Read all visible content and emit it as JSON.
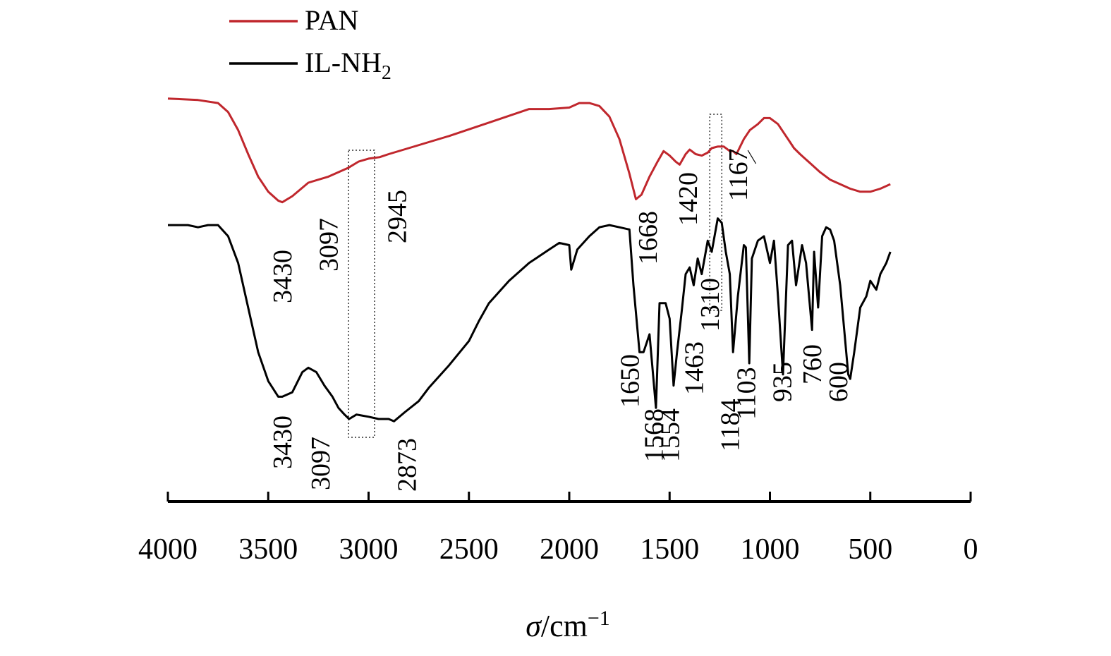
{
  "chart_data": {
    "type": "line",
    "title": "",
    "xlabel": "σ/cm⁻¹",
    "xlabel_parts": {
      "symbol": "σ",
      "unit": "/cm",
      "exp": "−1"
    },
    "ylabel": "",
    "xlim": [
      4000,
      0
    ],
    "x_reversed": true,
    "x_ticks": [
      4000,
      3500,
      3000,
      2500,
      2000,
      1500,
      1000,
      500,
      0
    ],
    "x_tick_labels": [
      "4000",
      "3500",
      "3000",
      "2500",
      "2000",
      "1500",
      "1000",
      "500",
      "0"
    ],
    "y_axis_shown": false,
    "grid": false,
    "legend_position": "top-left",
    "series": [
      {
        "name": "PAN",
        "name_parts": {
          "base": "PAN",
          "sub": ""
        },
        "color": "#c0272d",
        "x": [
          4000,
          3850,
          3750,
          3700,
          3650,
          3600,
          3550,
          3500,
          3450,
          3430,
          3380,
          3300,
          3200,
          3100,
          3050,
          3000,
          2945,
          2900,
          2800,
          2600,
          2400,
          2200,
          2100,
          2000,
          1950,
          1900,
          1850,
          1800,
          1750,
          1700,
          1668,
          1640,
          1600,
          1560,
          1530,
          1500,
          1470,
          1450,
          1420,
          1400,
          1370,
          1340,
          1310,
          1290,
          1260,
          1230,
          1200,
          1184,
          1167,
          1130,
          1100,
          1060,
          1030,
          1000,
          960,
          930,
          900,
          880,
          850,
          800,
          750,
          700,
          650,
          600,
          550,
          500,
          450,
          400
        ],
        "y": [
          0.87,
          0.86,
          0.84,
          0.78,
          0.66,
          0.5,
          0.35,
          0.25,
          0.19,
          0.18,
          0.22,
          0.31,
          0.35,
          0.41,
          0.45,
          0.47,
          0.48,
          0.5,
          0.54,
          0.62,
          0.71,
          0.8,
          0.8,
          0.81,
          0.84,
          0.84,
          0.82,
          0.75,
          0.6,
          0.37,
          0.2,
          0.23,
          0.35,
          0.45,
          0.52,
          0.49,
          0.45,
          0.43,
          0.5,
          0.53,
          0.5,
          0.49,
          0.51,
          0.54,
          0.55,
          0.55,
          0.52,
          0.52,
          0.5,
          0.6,
          0.66,
          0.7,
          0.74,
          0.74,
          0.7,
          0.64,
          0.58,
          0.54,
          0.5,
          0.44,
          0.38,
          0.33,
          0.3,
          0.27,
          0.25,
          0.25,
          0.27,
          0.3
        ]
      },
      {
        "name": "IL-NH2",
        "name_parts": {
          "base": "IL-NH",
          "sub": "2"
        },
        "color": "#000000",
        "x": [
          4000,
          3900,
          3850,
          3800,
          3750,
          3700,
          3650,
          3600,
          3550,
          3500,
          3450,
          3430,
          3380,
          3330,
          3300,
          3260,
          3220,
          3180,
          3150,
          3120,
          3097,
          3060,
          3000,
          2950,
          2900,
          2873,
          2820,
          2750,
          2700,
          2600,
          2500,
          2450,
          2400,
          2300,
          2200,
          2100,
          2050,
          2000,
          1990,
          1960,
          1900,
          1850,
          1800,
          1750,
          1700,
          1680,
          1650,
          1630,
          1600,
          1568,
          1550,
          1520,
          1500,
          1480,
          1463,
          1440,
          1420,
          1400,
          1380,
          1360,
          1340,
          1310,
          1290,
          1260,
          1240,
          1220,
          1200,
          1184,
          1160,
          1130,
          1120,
          1103,
          1090,
          1060,
          1030,
          1000,
          980,
          960,
          935,
          910,
          890,
          870,
          840,
          820,
          790,
          780,
          760,
          740,
          720,
          700,
          680,
          650,
          630,
          610,
          600,
          580,
          550,
          520,
          500,
          470,
          450,
          420,
          400
        ],
        "y": [
          0.87,
          0.87,
          0.86,
          0.87,
          0.87,
          0.82,
          0.7,
          0.5,
          0.3,
          0.17,
          0.1,
          0.1,
          0.12,
          0.21,
          0.23,
          0.21,
          0.15,
          0.1,
          0.05,
          0.02,
          0.0,
          0.02,
          0.01,
          0.0,
          0.0,
          -0.01,
          0.03,
          0.08,
          0.14,
          0.24,
          0.35,
          0.44,
          0.52,
          0.62,
          0.7,
          0.76,
          0.79,
          0.78,
          0.67,
          0.76,
          0.82,
          0.86,
          0.87,
          0.86,
          0.85,
          0.6,
          0.3,
          0.3,
          0.38,
          0.05,
          0.52,
          0.52,
          0.45,
          0.15,
          0.3,
          0.48,
          0.65,
          0.68,
          0.6,
          0.72,
          0.65,
          0.8,
          0.75,
          0.9,
          0.88,
          0.75,
          0.65,
          0.3,
          0.55,
          0.78,
          0.77,
          0.25,
          0.72,
          0.8,
          0.82,
          0.7,
          0.8,
          0.55,
          0.2,
          0.78,
          0.8,
          0.6,
          0.78,
          0.7,
          0.4,
          0.75,
          0.5,
          0.82,
          0.86,
          0.85,
          0.8,
          0.6,
          0.4,
          0.2,
          0.18,
          0.3,
          0.5,
          0.55,
          0.62,
          0.58,
          0.65,
          0.7,
          0.75
        ]
      }
    ],
    "peak_labels": [
      {
        "text": "3430",
        "series": "PAN",
        "x": 3430
      },
      {
        "text": "3097",
        "series": "PAN",
        "x": 3200
      },
      {
        "text": "2945",
        "series": "PAN",
        "x": 2860
      },
      {
        "text": "1668",
        "series": "PAN",
        "x": 1610
      },
      {
        "text": "1420",
        "series": "PAN",
        "x": 1410
      },
      {
        "text": "1167",
        "series": "PAN",
        "x": 1160
      },
      {
        "text": "3430",
        "series": "IL-NH2",
        "x": 3430
      },
      {
        "text": "3097",
        "series": "IL-NH2",
        "x": 3240
      },
      {
        "text": "2873",
        "series": "IL-NH2",
        "x": 2810
      },
      {
        "text": "1650",
        "series": "IL-NH2",
        "x": 1700
      },
      {
        "text": "1568",
        "series": "IL-NH2",
        "x": 1580
      },
      {
        "text": "1554",
        "series": "IL-NH2",
        "x": 1500
      },
      {
        "text": "1463",
        "series": "IL-NH2",
        "x": 1380
      },
      {
        "text": "1310",
        "series": "IL-NH2",
        "x": 1300
      },
      {
        "text": "1184",
        "series": "IL-NH2",
        "x": 1200
      },
      {
        "text": "1103",
        "series": "IL-NH2",
        "x": 1120
      },
      {
        "text": "935",
        "series": "IL-NH2",
        "x": 940
      },
      {
        "text": "760",
        "series": "IL-NH2",
        "x": 790
      },
      {
        "text": "600",
        "series": "IL-NH2",
        "x": 660
      }
    ]
  }
}
